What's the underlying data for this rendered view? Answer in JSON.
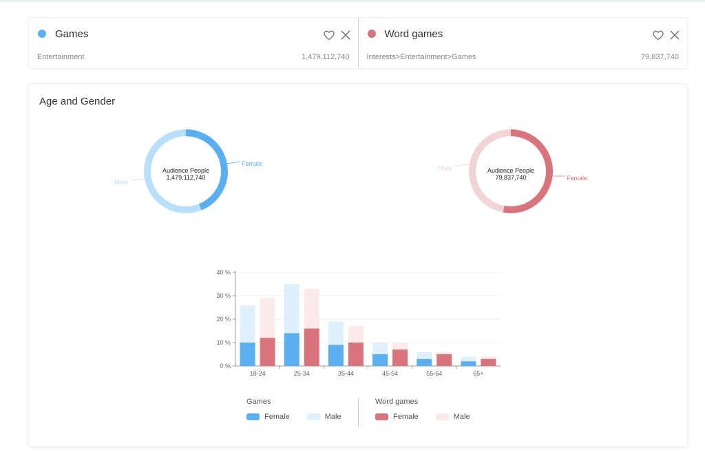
{
  "colors": {
    "games_female": "#5aaff0",
    "games_male": "#b9e0fa",
    "games_male_bar": "#dff1fd",
    "word_female": "#d9737c",
    "word_male": "#f1d4d4",
    "word_male_bar": "#fbeaea"
  },
  "audiences": [
    {
      "name": "Games",
      "path": "Entertainment",
      "size": "1,479,112,740",
      "dot_color": "#5aaff0",
      "icons": [
        "heart-icon",
        "close-icon"
      ]
    },
    {
      "name": "Word games",
      "path": "Interests>Entertainment>Games",
      "size": "79,837,740",
      "dot_color": "#d9737c",
      "icons": [
        "heart-icon",
        "close-icon"
      ]
    }
  ],
  "panel": {
    "title": "Age and Gender"
  },
  "donuts": [
    {
      "center_label": "Audience People",
      "center_value": "1,479,112,740",
      "female_label": "Female",
      "male_label": "Male",
      "female_share": 0.44
    },
    {
      "center_label": "Audience People",
      "center_value": "79,837,740",
      "female_label": "Female",
      "male_label": "Male",
      "female_share": 0.53
    }
  ],
  "chart_data": {
    "type": "bar",
    "categories": [
      "18-24",
      "25-34",
      "35-44",
      "45-54",
      "55-64",
      "65+"
    ],
    "ylim": [
      0,
      40
    ],
    "yticks": [
      "0 %",
      "10 %",
      "20 %",
      "30 %",
      "40 %"
    ],
    "series": [
      {
        "group": "Games",
        "name": "Female",
        "values": [
          10,
          14,
          9,
          5,
          3,
          2
        ]
      },
      {
        "group": "Games",
        "name": "Male",
        "values": [
          16,
          21,
          10,
          5,
          3,
          2
        ]
      },
      {
        "group": "Word games",
        "name": "Female",
        "values": [
          12,
          16,
          10,
          7,
          5,
          3
        ]
      },
      {
        "group": "Word games",
        "name": "Male",
        "values": [
          17,
          17,
          7,
          3,
          1,
          1
        ]
      }
    ],
    "stacked": true,
    "grid": true
  },
  "legend": [
    {
      "title": "Games",
      "items": [
        {
          "label": "Female"
        },
        {
          "label": "Male"
        }
      ]
    },
    {
      "title": "Word games",
      "items": [
        {
          "label": "Female"
        },
        {
          "label": "Male"
        }
      ]
    }
  ]
}
